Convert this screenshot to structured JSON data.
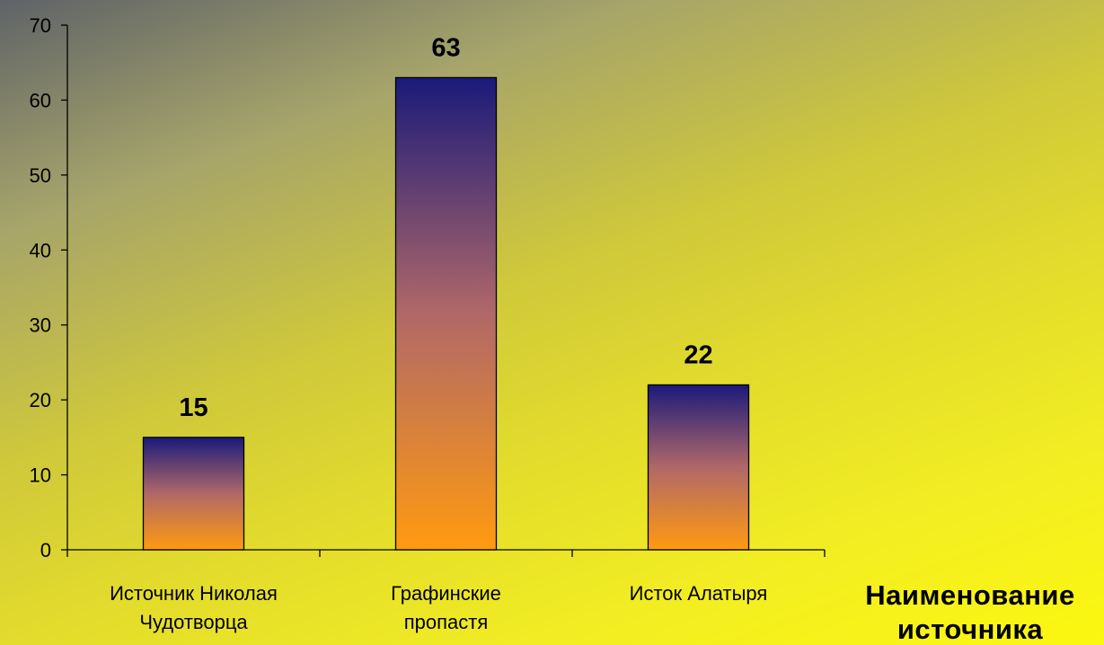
{
  "chart_data": {
    "type": "bar",
    "categories": [
      "Источник Николая Чудотворца",
      "Графинские пропастя",
      "Исток Алатыря"
    ],
    "category_lines": [
      [
        "Источник Николая",
        "Чудотворца"
      ],
      [
        "Графинские",
        "пропастя"
      ],
      [
        "Исток Алатыря"
      ]
    ],
    "values": [
      15,
      63,
      22
    ],
    "data_labels": [
      "15",
      "63",
      "22"
    ],
    "title": "",
    "xlabel": "Наименование источника",
    "xlabel_lines": [
      "Наименование",
      "источника"
    ],
    "ylabel": "",
    "ylim": [
      0,
      70
    ],
    "yticks": [
      0,
      10,
      20,
      30,
      40,
      50,
      60,
      70
    ],
    "grid": false,
    "legend": "none",
    "colors": {
      "bar_top": "#1a1a7a",
      "bar_mid": "#b06868",
      "bar_bottom": "#ff9a10",
      "axis": "#000000"
    }
  }
}
